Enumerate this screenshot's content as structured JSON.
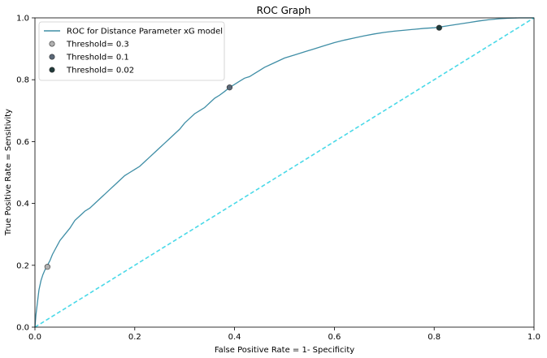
{
  "chart_data": {
    "type": "line",
    "title": "ROC Graph",
    "xlabel": "False Positive Rate = 1- Specificity",
    "ylabel": "True Positive Rate = Sensitivity",
    "xlim": [
      0,
      1
    ],
    "ylim": [
      0,
      1
    ],
    "xticks": [
      "0.0",
      "0.2",
      "0.4",
      "0.6",
      "0.8",
      "1.0"
    ],
    "yticks": [
      "0.0",
      "0.2",
      "0.4",
      "0.6",
      "0.8",
      "1.0"
    ],
    "grid": false,
    "legend_position": "top-left",
    "series": [
      {
        "name": "ROC for Distance Parameter xG model",
        "color": "#3f8ea6",
        "style": "solid",
        "x": [
          0,
          0.002,
          0.005,
          0.008,
          0.012,
          0.016,
          0.02,
          0.025,
          0.03,
          0.035,
          0.04,
          0.045,
          0.05,
          0.06,
          0.07,
          0.08,
          0.09,
          0.1,
          0.11,
          0.12,
          0.13,
          0.14,
          0.15,
          0.16,
          0.17,
          0.18,
          0.19,
          0.2,
          0.21,
          0.22,
          0.23,
          0.24,
          0.25,
          0.26,
          0.27,
          0.28,
          0.29,
          0.3,
          0.31,
          0.32,
          0.33,
          0.34,
          0.35,
          0.36,
          0.37,
          0.38,
          0.39,
          0.4,
          0.41,
          0.42,
          0.43,
          0.44,
          0.45,
          0.46,
          0.48,
          0.5,
          0.52,
          0.54,
          0.56,
          0.58,
          0.6,
          0.62,
          0.64,
          0.66,
          0.68,
          0.7,
          0.72,
          0.74,
          0.76,
          0.78,
          0.8,
          0.81,
          0.83,
          0.85,
          0.87,
          0.89,
          0.91,
          0.93,
          0.95,
          0.97,
          0.99,
          1.0
        ],
        "y": [
          0,
          0.04,
          0.08,
          0.12,
          0.15,
          0.17,
          0.185,
          0.2,
          0.215,
          0.235,
          0.25,
          0.265,
          0.28,
          0.3,
          0.32,
          0.345,
          0.36,
          0.375,
          0.385,
          0.4,
          0.415,
          0.43,
          0.445,
          0.46,
          0.475,
          0.49,
          0.5,
          0.51,
          0.52,
          0.535,
          0.55,
          0.565,
          0.58,
          0.595,
          0.61,
          0.625,
          0.64,
          0.66,
          0.675,
          0.69,
          0.7,
          0.71,
          0.725,
          0.74,
          0.75,
          0.762,
          0.775,
          0.785,
          0.795,
          0.805,
          0.81,
          0.82,
          0.83,
          0.84,
          0.855,
          0.87,
          0.88,
          0.89,
          0.9,
          0.91,
          0.92,
          0.928,
          0.935,
          0.942,
          0.948,
          0.953,
          0.957,
          0.96,
          0.963,
          0.966,
          0.968,
          0.97,
          0.975,
          0.98,
          0.985,
          0.99,
          0.994,
          0.997,
          0.999,
          1.0,
          1.0,
          1.0
        ]
      },
      {
        "name": "",
        "color": "#4ad9e8",
        "style": "dashed",
        "x": [
          0,
          1
        ],
        "y": [
          0,
          1
        ]
      }
    ],
    "points": [
      {
        "name": "Threshold= 0.3",
        "x": 0.025,
        "y": 0.195,
        "color": "#b0b0b0"
      },
      {
        "name": "Threshold= 0.1",
        "x": 0.39,
        "y": 0.775,
        "color": "#5a6878"
      },
      {
        "name": "Threshold= 0.02",
        "x": 0.81,
        "y": 0.968,
        "color": "#203a3a"
      }
    ]
  }
}
